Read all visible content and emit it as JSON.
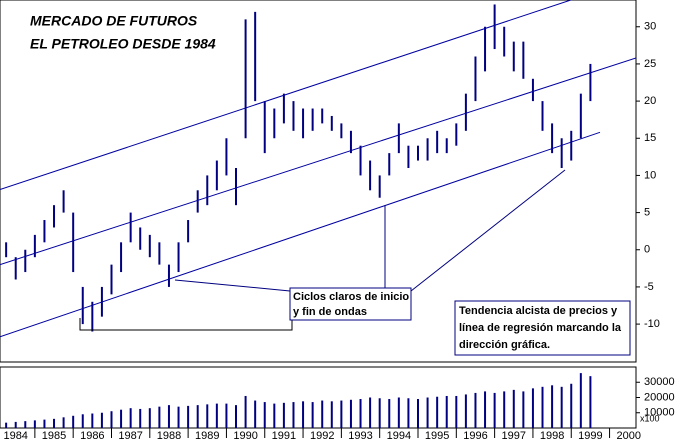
{
  "chart_data": [
    {
      "type": "ohlc",
      "title": [
        "MERCADO DE FUTUROS",
        "EL PETROLEO DESDE 1984"
      ],
      "annotations": [
        [
          "Ciclos claros de inicio",
          "y fin de ondas"
        ],
        [
          "Tendencia alcista de precios y",
          "línea de regresión marcando la",
          "dirección gráfica."
        ]
      ],
      "color": "#000080",
      "x": [
        1984.0,
        1984.25,
        1984.5,
        1984.75,
        1985.0,
        1985.25,
        1985.5,
        1985.75,
        1986.0,
        1986.25,
        1986.5,
        1986.75,
        1987.0,
        1987.25,
        1987.5,
        1987.75,
        1988.0,
        1988.25,
        1988.5,
        1988.75,
        1989.0,
        1989.25,
        1989.5,
        1989.75,
        1990.0,
        1990.25,
        1990.5,
        1990.75,
        1991.0,
        1991.25,
        1991.5,
        1991.75,
        1992.0,
        1992.25,
        1992.5,
        1992.75,
        1993.0,
        1993.25,
        1993.5,
        1993.75,
        1994.0,
        1994.25,
        1994.5,
        1994.75,
        1995.0,
        1995.25,
        1995.5,
        1995.75,
        1996.0,
        1996.25,
        1996.5,
        1996.75,
        1997.0,
        1997.25,
        1997.5,
        1997.75,
        1998.0,
        1998.25,
        1998.5,
        1998.75,
        1999.0,
        1999.25,
        1999.5
      ],
      "low": [
        0,
        -1,
        -4,
        -3,
        -1,
        1,
        3,
        5,
        -3,
        -10,
        -11,
        -9,
        -6,
        -3,
        1,
        0,
        -1,
        -2,
        -5,
        -3,
        1,
        5,
        6,
        8,
        10,
        6,
        15,
        20,
        13,
        15,
        17,
        16,
        15,
        16,
        17,
        16,
        15,
        13,
        10,
        8,
        7,
        10,
        13,
        11,
        12,
        12,
        13,
        13,
        14,
        16,
        20,
        24,
        27,
        26,
        24,
        23,
        20,
        16,
        13,
        11,
        12,
        15,
        20
      ],
      "high": [
        2,
        1,
        -1,
        0,
        2,
        4,
        6,
        8,
        5,
        -5,
        -7,
        -5,
        -2,
        1,
        5,
        3,
        2,
        1,
        -2,
        1,
        4,
        8,
        10,
        12,
        15,
        11,
        31,
        32,
        20,
        19,
        21,
        20,
        19,
        19,
        19,
        18,
        17,
        16,
        14,
        12,
        10,
        13,
        17,
        14,
        14,
        15,
        16,
        15,
        17,
        21,
        26,
        30,
        33,
        30,
        28,
        28,
        23,
        20,
        17,
        15,
        16,
        21,
        25
      ],
      "trend_lines": [
        {
          "x": [
            1984.09,
            1998.99
          ],
          "y": [
            8.1,
            33.6
          ]
        },
        {
          "x": [
            1984.09,
            2000.69
          ],
          "y": [
            -2.0,
            25.8
          ]
        },
        {
          "x": [
            1984.09,
            1999.75
          ],
          "y": [
            -11.7,
            15.8
          ]
        }
      ],
      "xlim": [
        1984.09,
        2000.69
      ],
      "xticks": [
        1984,
        1985,
        1986,
        1987,
        1988,
        1989,
        1990,
        1991,
        1992,
        1993,
        1994,
        1995,
        1996,
        1997,
        1998,
        1999,
        2000
      ],
      "ylim": [
        -15.1,
        33.6
      ],
      "yticks": [
        -10,
        -5,
        0,
        5,
        10,
        15,
        20,
        25,
        30
      ]
    },
    {
      "type": "bar",
      "color": "#000080",
      "unit_label": "x100",
      "x": [
        1984.0,
        1984.25,
        1984.5,
        1984.75,
        1985.0,
        1985.25,
        1985.5,
        1985.75,
        1986.0,
        1986.25,
        1986.5,
        1986.75,
        1987.0,
        1987.25,
        1987.5,
        1987.75,
        1988.0,
        1988.25,
        1988.5,
        1988.75,
        1989.0,
        1989.25,
        1989.5,
        1989.75,
        1990.0,
        1990.25,
        1990.5,
        1990.75,
        1991.0,
        1991.25,
        1991.5,
        1991.75,
        1992.0,
        1992.25,
        1992.5,
        1992.75,
        1993.0,
        1993.25,
        1993.5,
        1993.75,
        1994.0,
        1994.25,
        1994.5,
        1994.75,
        1995.0,
        1995.25,
        1995.5,
        1995.75,
        1996.0,
        1996.25,
        1996.5,
        1996.75,
        1997.0,
        1997.25,
        1997.5,
        1997.75,
        1998.0,
        1998.25,
        1998.5,
        1998.75,
        1999.0,
        1999.25,
        1999.5
      ],
      "values": [
        3000,
        3500,
        4000,
        4500,
        5000,
        5500,
        6000,
        7000,
        8000,
        9000,
        9500,
        10000,
        11000,
        12000,
        13000,
        12500,
        13000,
        14000,
        15000,
        14000,
        14500,
        15000,
        15500,
        16000,
        16000,
        15000,
        21000,
        18000,
        17000,
        16000,
        16500,
        17000,
        17500,
        17000,
        18000,
        17500,
        18000,
        18500,
        19000,
        20000,
        19500,
        19000,
        20000,
        19500,
        19000,
        20000,
        20500,
        21000,
        21000,
        22000,
        23000,
        24000,
        23000,
        24000,
        25000,
        24000,
        26000,
        27000,
        28000,
        27000,
        29000,
        36000,
        34000
      ],
      "xlim": [
        1984.09,
        2000.69
      ],
      "ylim": [
        0,
        40000
      ],
      "yticks": [
        10000,
        20000,
        30000
      ]
    }
  ]
}
